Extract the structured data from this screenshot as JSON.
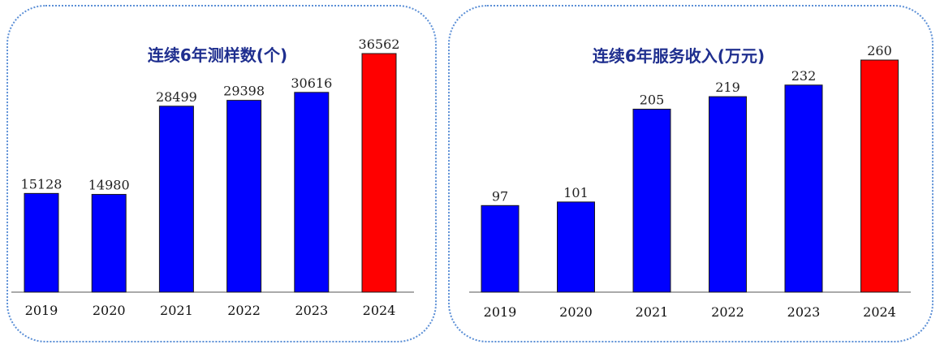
{
  "colors": {
    "default_bar": "#0000ff",
    "highlight_bar": "#ff0000",
    "frame": "#5b8fd6",
    "title": "#1f2f8f"
  },
  "chart_data": [
    {
      "type": "bar",
      "title": "连续6年测样数(个)",
      "categories": [
        "2019",
        "2020",
        "2021",
        "2022",
        "2023",
        "2024"
      ],
      "values": [
        15128,
        14980,
        28499,
        29398,
        30616,
        36562
      ],
      "highlight_index": 5,
      "xlabel": "",
      "ylabel": "",
      "ylim": [
        0,
        36562
      ],
      "grid": false,
      "legend": "none"
    },
    {
      "type": "bar",
      "title": "连续6年服务收入(万元)",
      "categories": [
        "2019",
        "2020",
        "2021",
        "2022",
        "2023",
        "2024"
      ],
      "values": [
        97,
        101,
        205,
        219,
        232,
        260
      ],
      "highlight_index": 5,
      "xlabel": "",
      "ylabel": "",
      "ylim": [
        0,
        260
      ],
      "grid": false,
      "legend": "none"
    }
  ]
}
